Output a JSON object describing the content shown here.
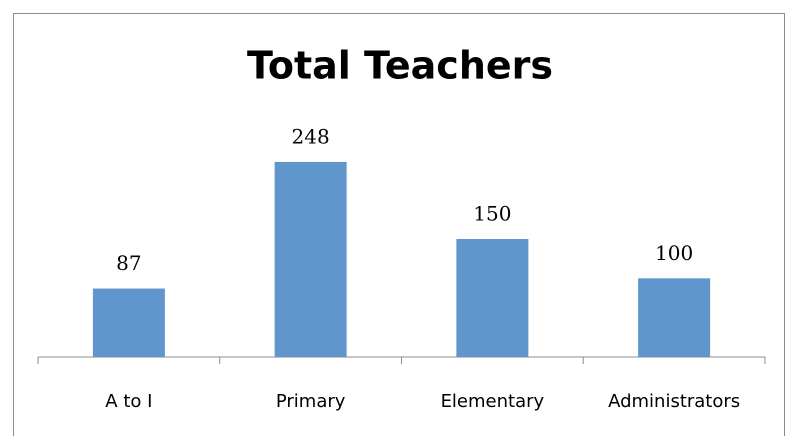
{
  "chart_data": {
    "type": "bar",
    "title": "Total Teachers",
    "categories": [
      "A to I",
      "Primary",
      "Elementary",
      "Administrators"
    ],
    "values": [
      87,
      248,
      150,
      100
    ],
    "color": "#6096cc",
    "ylim": [
      0,
      300
    ]
  }
}
